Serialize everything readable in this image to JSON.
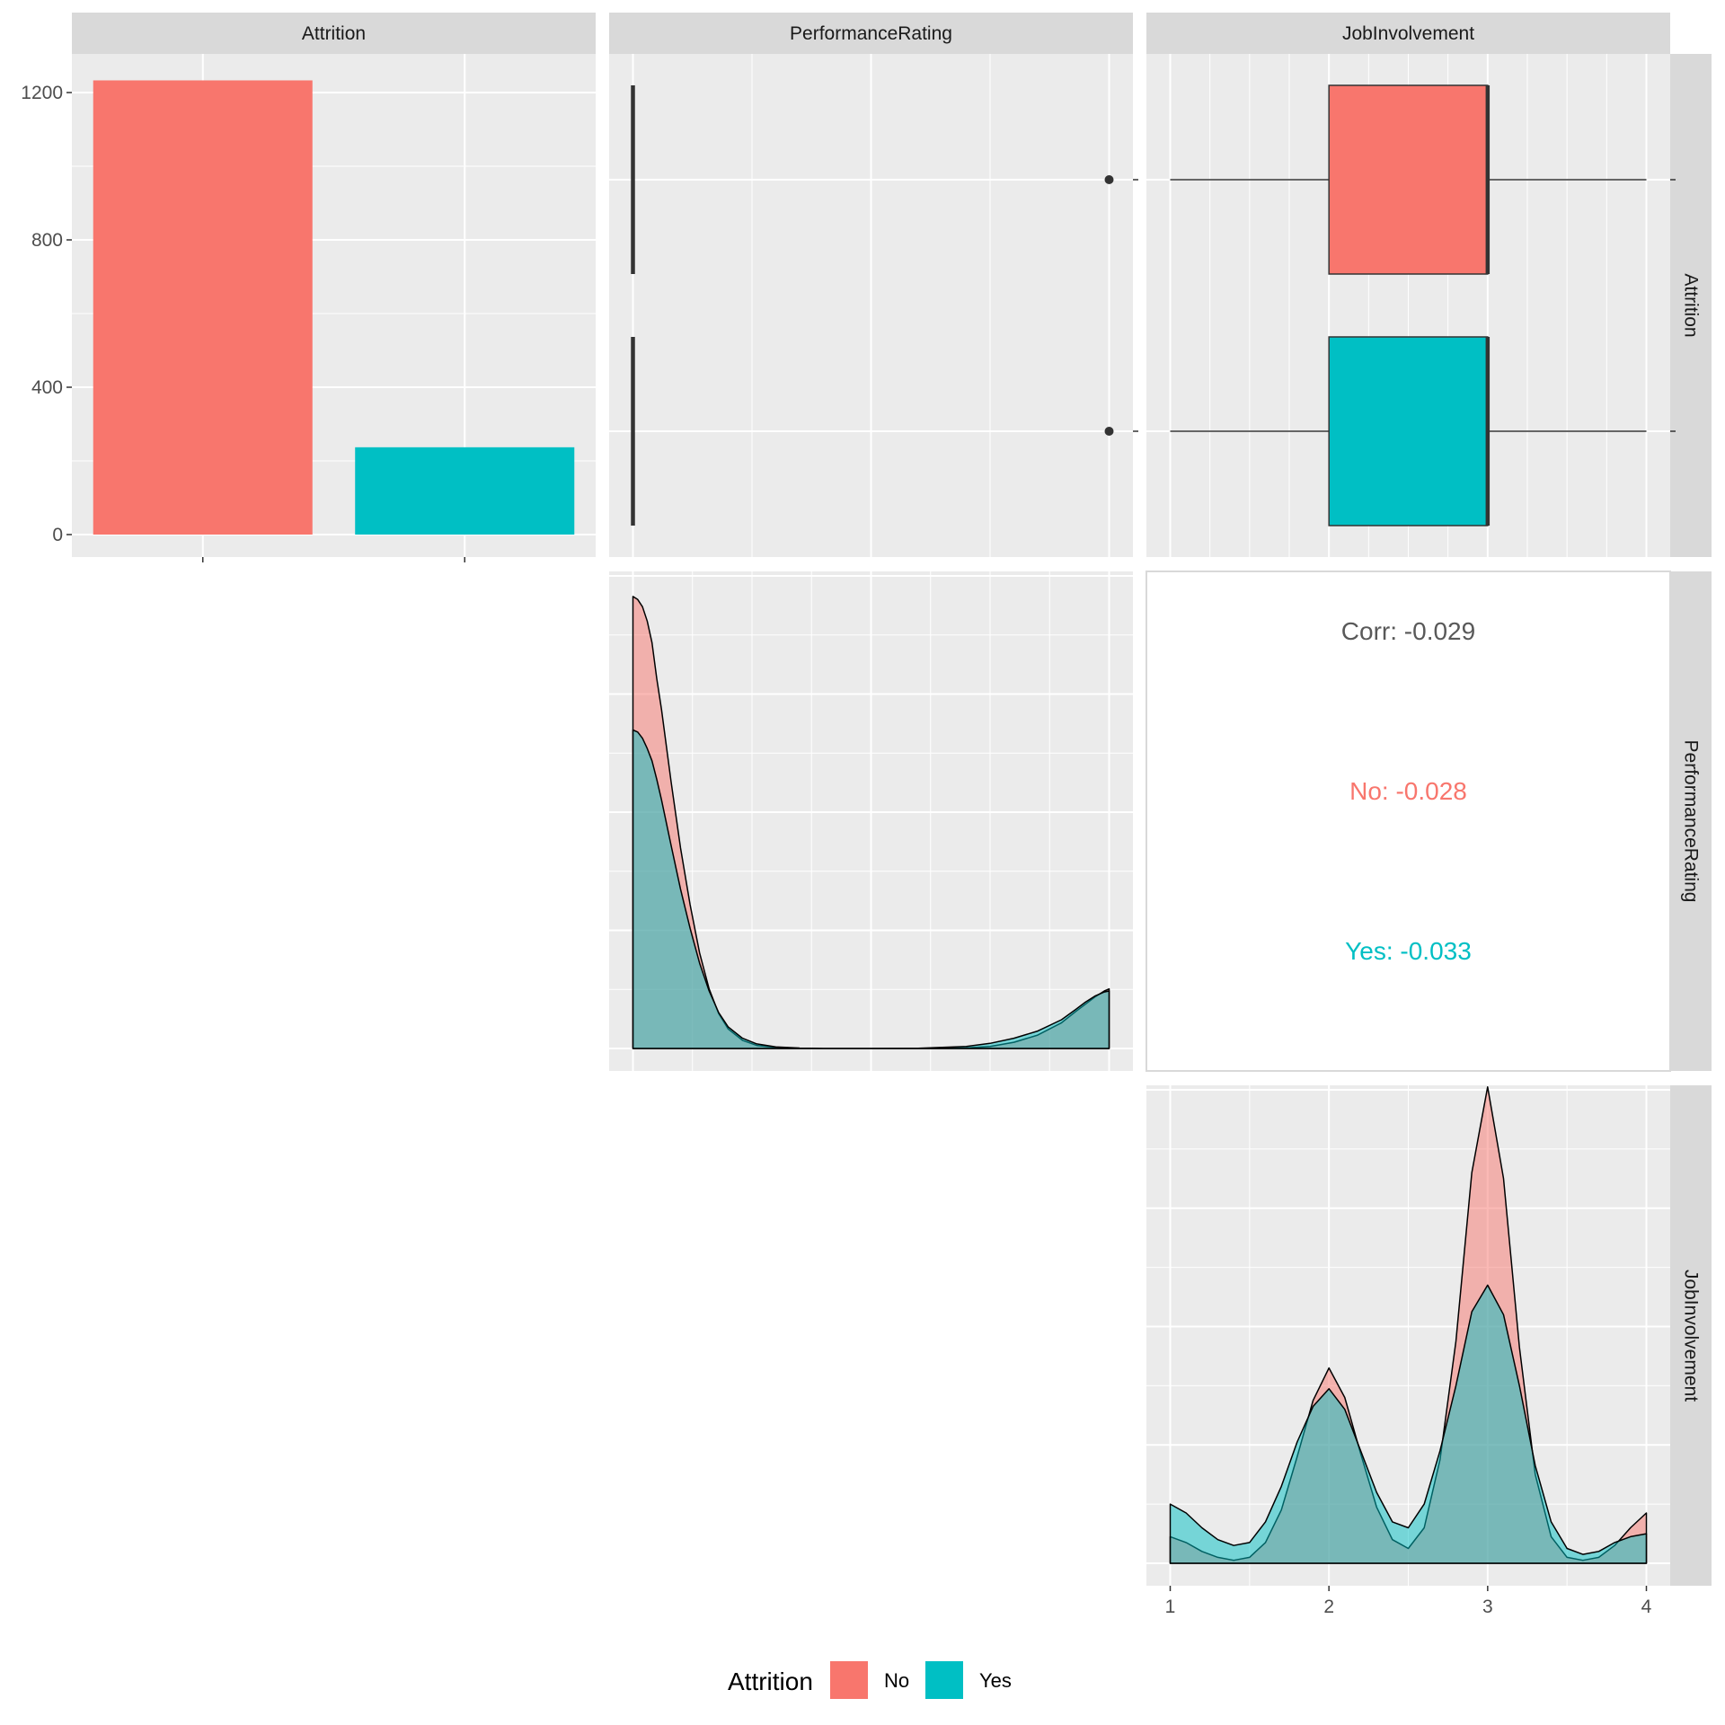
{
  "colors": {
    "no": "#F8766D",
    "yes": "#00BFC4",
    "panel_bg": "#EBEBEB",
    "strip_bg": "#D9D9D9",
    "grid": "#FFFFFF",
    "corr_total": "#595959"
  },
  "chart_data": [
    {
      "type": "bar",
      "panel": "Attrition (diagonal)",
      "strip_top": "Attrition",
      "categories": [
        "No",
        "Yes"
      ],
      "values": [
        1233,
        237
      ],
      "ylim": [
        0,
        1300
      ],
      "yticks": [
        0,
        400,
        800,
        1200
      ],
      "ytick_labels": [
        "0",
        "400",
        "800",
        "1200"
      ],
      "grid": true
    },
    {
      "type": "box",
      "panel": "PerformanceRating vs Attrition",
      "strip_top": "PerformanceRating",
      "orientation": "horizontal",
      "xlim": [
        2.95,
        4.05
      ],
      "series": [
        {
          "name": "No",
          "min": 3,
          "q1": 3,
          "median": 3,
          "q3": 3,
          "max": 3,
          "outliers": [
            4
          ]
        },
        {
          "name": "Yes",
          "min": 3,
          "q1": 3,
          "median": 3,
          "q3": 3,
          "max": 3,
          "outliers": [
            4
          ]
        }
      ]
    },
    {
      "type": "box",
      "panel": "JobInvolvement vs Attrition",
      "strip_top": "JobInvolvement",
      "strip_right": "Attrition",
      "orientation": "horizontal",
      "xlim": [
        0.85,
        4.15
      ],
      "series": [
        {
          "name": "No",
          "min": 1,
          "q1": 2,
          "median": 3,
          "q3": 3,
          "max": 4,
          "outliers": []
        },
        {
          "name": "Yes",
          "min": 1,
          "q1": 2,
          "median": 3,
          "q3": 3,
          "max": 4,
          "outliers": []
        }
      ]
    },
    {
      "type": "area",
      "panel": "PerformanceRating density",
      "xlim": [
        2.95,
        4.05
      ],
      "ylim": [
        0,
        4.6
      ],
      "x": [
        3.0,
        3.01,
        3.02,
        3.03,
        3.04,
        3.05,
        3.06,
        3.08,
        3.1,
        3.12,
        3.14,
        3.16,
        3.18,
        3.2,
        3.23,
        3.26,
        3.3,
        3.35,
        3.4,
        3.5,
        3.6,
        3.7,
        3.75,
        3.8,
        3.85,
        3.9,
        3.93,
        3.95,
        3.97,
        3.99,
        4.0
      ],
      "series": [
        {
          "name": "No",
          "values": [
            4.4,
            4.37,
            4.3,
            4.16,
            3.95,
            3.6,
            3.3,
            2.6,
            1.95,
            1.4,
            0.93,
            0.58,
            0.34,
            0.19,
            0.08,
            0.03,
            0.01,
            0.002,
            0.0,
            0.0,
            0.0,
            0.005,
            0.02,
            0.06,
            0.13,
            0.25,
            0.36,
            0.43,
            0.5,
            0.56,
            0.58
          ]
        },
        {
          "name": "Yes",
          "values": [
            3.1,
            3.08,
            3.02,
            2.92,
            2.8,
            2.62,
            2.42,
            1.98,
            1.55,
            1.17,
            0.83,
            0.56,
            0.35,
            0.21,
            0.1,
            0.045,
            0.015,
            0.004,
            0.0,
            0.0,
            0.002,
            0.02,
            0.05,
            0.1,
            0.17,
            0.28,
            0.38,
            0.45,
            0.51,
            0.55,
            0.56
          ]
        }
      ]
    },
    {
      "type": "table",
      "panel": "JobInvolvement vs PerformanceRating correlation",
      "strip_right": "PerformanceRating",
      "lines": [
        {
          "label": "Corr: -0.029",
          "group": "total"
        },
        {
          "label": "No: -0.028",
          "group": "No"
        },
        {
          "label": "Yes: -0.033",
          "group": "Yes"
        }
      ]
    },
    {
      "type": "area",
      "panel": "JobInvolvement density",
      "strip_right": "JobInvolvement",
      "xlim": [
        0.85,
        4.15
      ],
      "ylim": [
        0,
        1.6
      ],
      "xticks": [
        1,
        2,
        3,
        4
      ],
      "xtick_labels": [
        "1",
        "2",
        "3",
        "4"
      ],
      "x": [
        1.0,
        1.1,
        1.2,
        1.3,
        1.4,
        1.5,
        1.6,
        1.7,
        1.8,
        1.9,
        2.0,
        2.1,
        2.2,
        2.3,
        2.4,
        2.5,
        2.6,
        2.7,
        2.8,
        2.9,
        3.0,
        3.1,
        3.2,
        3.3,
        3.4,
        3.5,
        3.6,
        3.7,
        3.8,
        3.9,
        4.0
      ],
      "series": [
        {
          "name": "No",
          "values": [
            0.09,
            0.07,
            0.04,
            0.02,
            0.01,
            0.02,
            0.07,
            0.18,
            0.36,
            0.55,
            0.66,
            0.56,
            0.37,
            0.19,
            0.08,
            0.05,
            0.12,
            0.35,
            0.75,
            1.32,
            1.61,
            1.3,
            0.73,
            0.3,
            0.09,
            0.02,
            0.01,
            0.02,
            0.06,
            0.12,
            0.17
          ]
        },
        {
          "name": "Yes",
          "values": [
            0.2,
            0.17,
            0.12,
            0.08,
            0.06,
            0.07,
            0.14,
            0.26,
            0.41,
            0.53,
            0.59,
            0.52,
            0.38,
            0.24,
            0.14,
            0.12,
            0.2,
            0.38,
            0.6,
            0.85,
            0.94,
            0.84,
            0.6,
            0.33,
            0.14,
            0.05,
            0.03,
            0.04,
            0.07,
            0.09,
            0.1
          ]
        }
      ]
    }
  ],
  "legend": {
    "title": "Attrition",
    "items": [
      {
        "label": "No",
        "color_key": "no"
      },
      {
        "label": "Yes",
        "color_key": "yes"
      }
    ]
  }
}
